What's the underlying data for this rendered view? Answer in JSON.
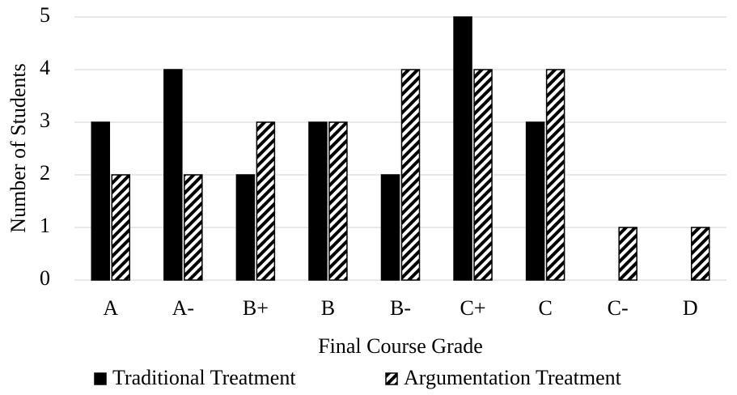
{
  "chart_data": {
    "type": "bar",
    "x_label": "Final Course Grade",
    "y_label": "Number of Students",
    "categories": [
      "A",
      "A-",
      "B+",
      "B",
      "B-",
      "C+",
      "C",
      "C-",
      "D"
    ],
    "series": [
      {
        "name": "Traditional Treatment",
        "color": "#000000",
        "values": [
          3,
          4,
          2,
          3,
          2,
          5,
          3,
          0,
          0
        ]
      },
      {
        "name": "Argumentation Treatment",
        "color": "#000000",
        "hatch": true,
        "values": [
          2,
          2,
          3,
          3,
          4,
          4,
          4,
          1,
          1
        ]
      }
    ],
    "ylim": [
      0,
      5
    ],
    "yticks": [
      0,
      1,
      2,
      3,
      4,
      5
    ],
    "grid": true,
    "legend": "bottom"
  }
}
